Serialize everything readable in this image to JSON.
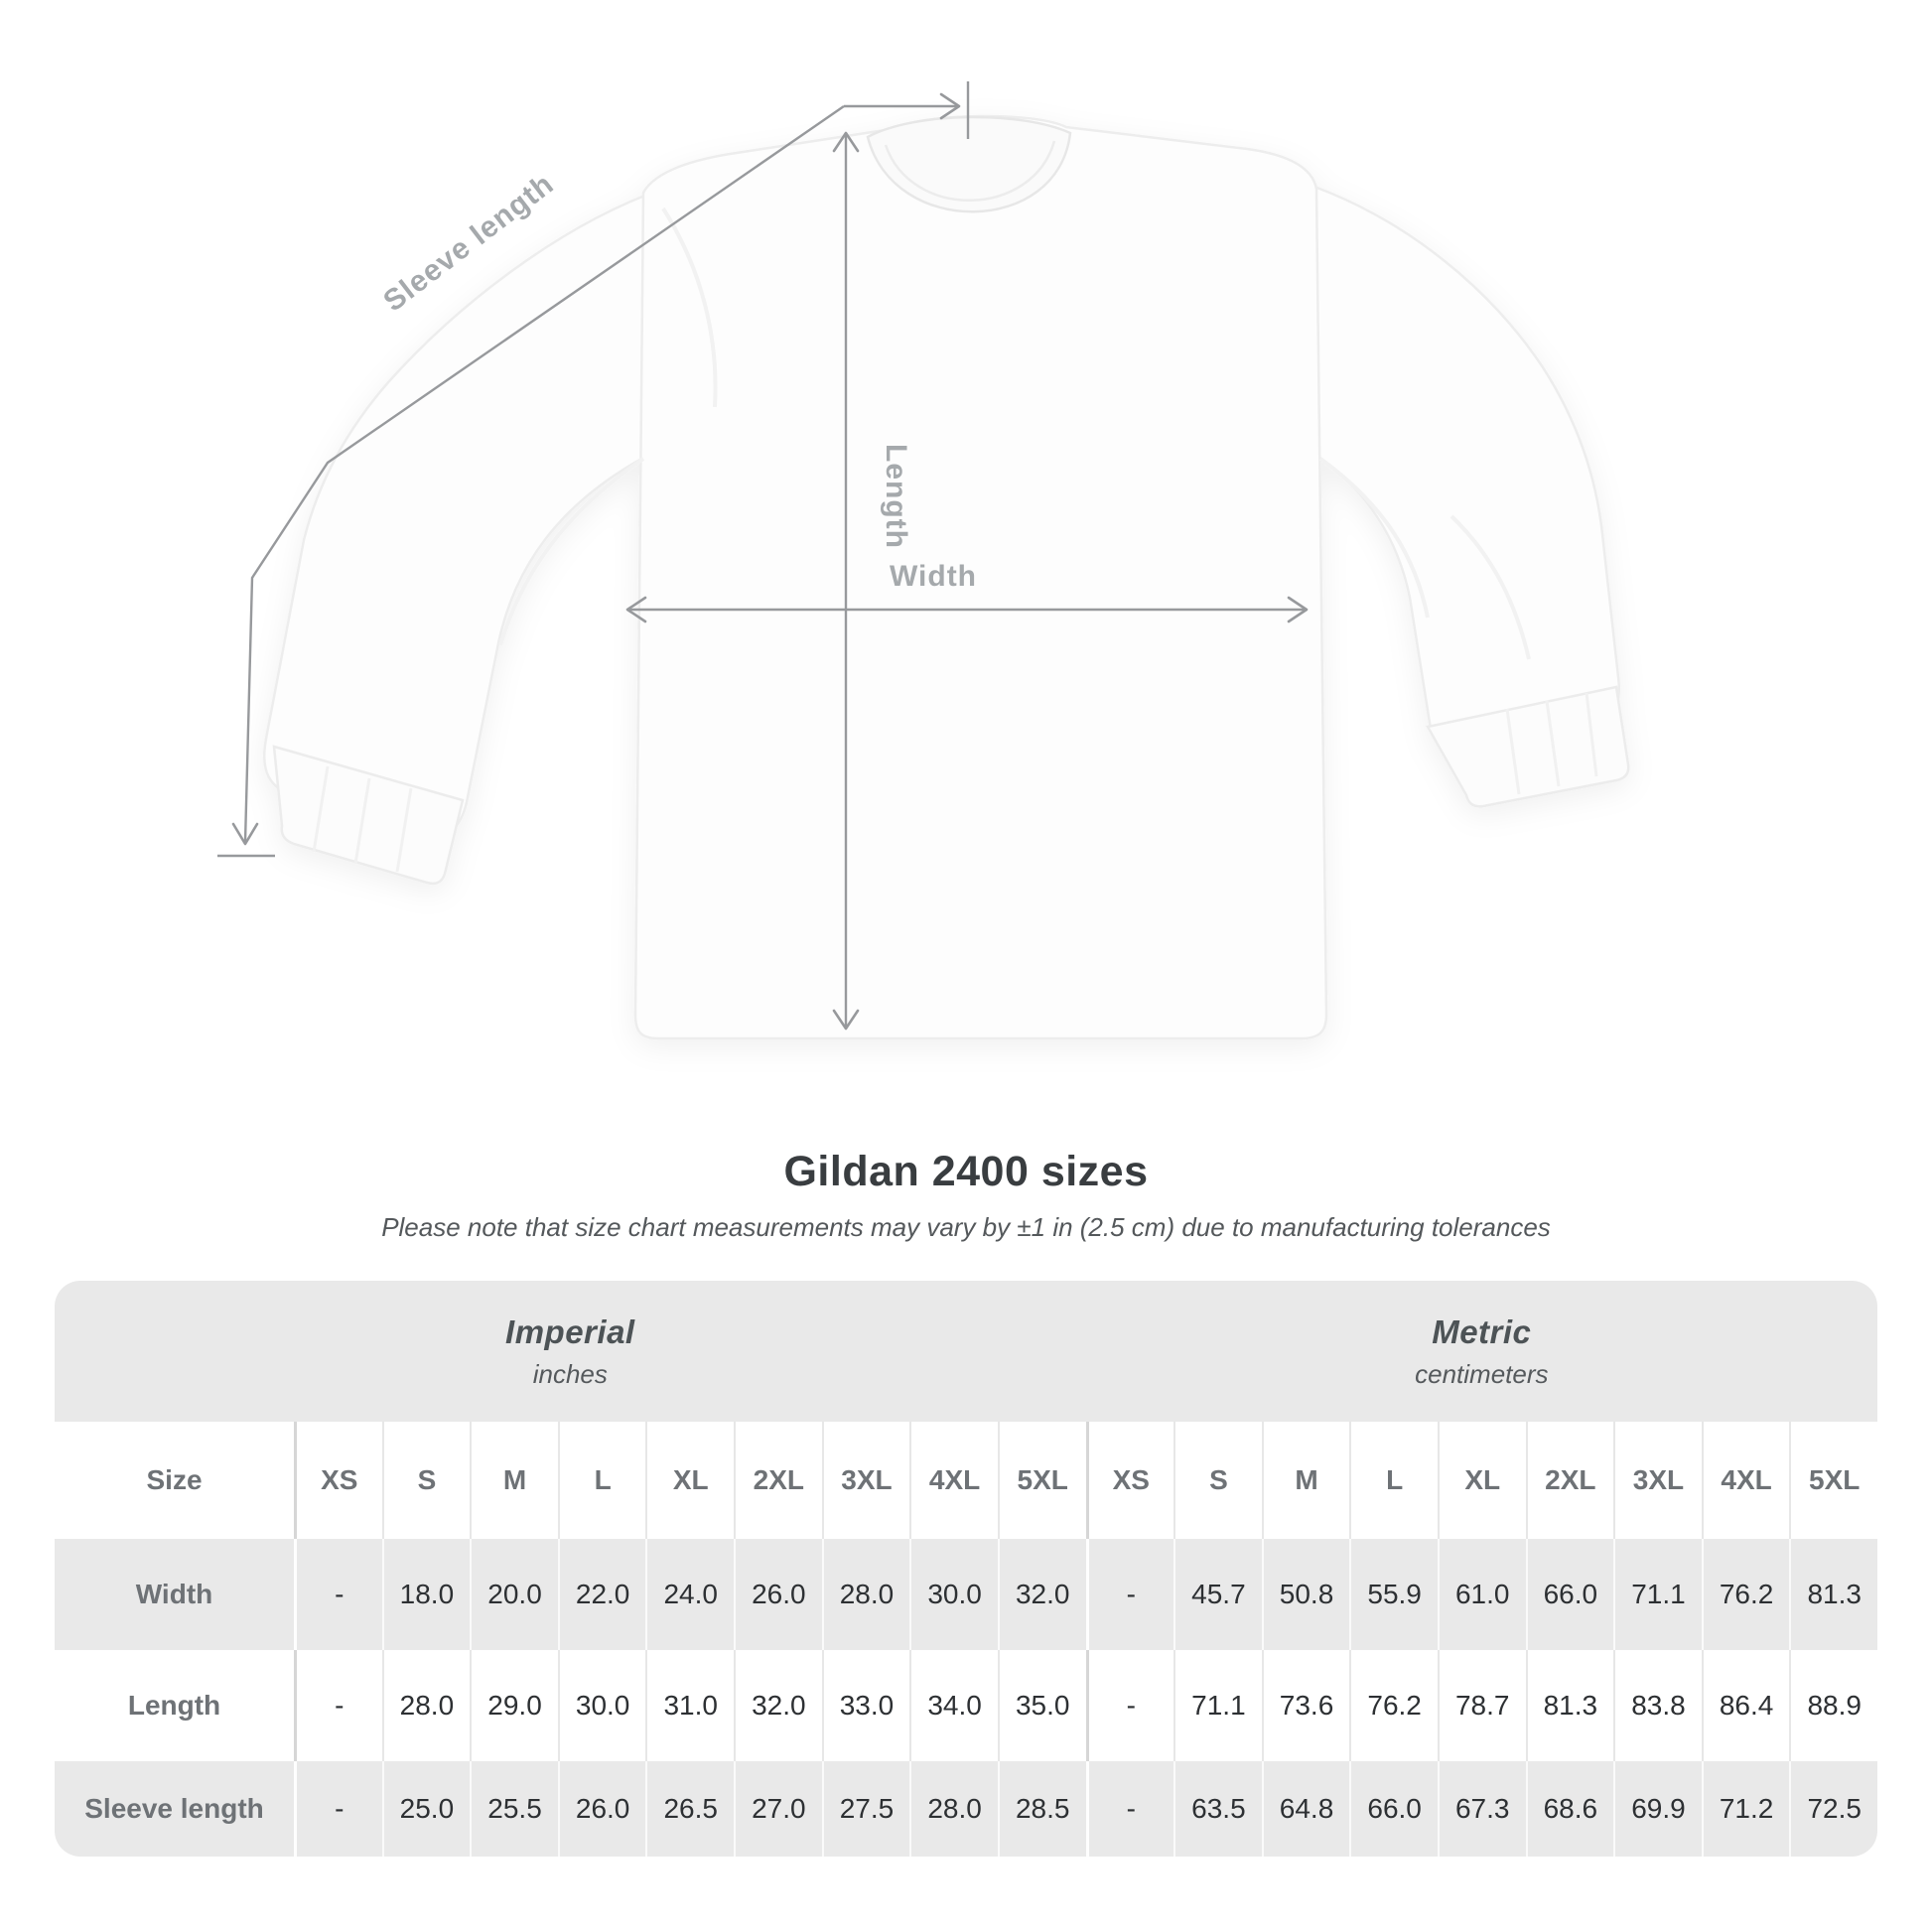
{
  "diagram": {
    "sleeve_length_label": "Sleeve length",
    "length_label": "Length",
    "width_label": "Width"
  },
  "heading": {
    "title": "Gildan 2400 sizes",
    "subtitle": "Please note that size chart measurements may vary by ±1 in (2.5 cm) due to manufacturing tolerances"
  },
  "chart_data": {
    "type": "table",
    "title": "Gildan 2400 sizes",
    "corner_label": "Size",
    "unit_groups": [
      {
        "title": "Imperial",
        "subtitle": "inches",
        "sizes": [
          "XS",
          "S",
          "M",
          "L",
          "XL",
          "2XL",
          "3XL",
          "4XL",
          "5XL"
        ]
      },
      {
        "title": "Metric",
        "subtitle": "centimeters",
        "sizes": [
          "XS",
          "S",
          "M",
          "L",
          "XL",
          "2XL",
          "3XL",
          "4XL",
          "5XL"
        ]
      }
    ],
    "rows": [
      {
        "label": "Width",
        "values": [
          "-",
          "18.0",
          "20.0",
          "22.0",
          "24.0",
          "26.0",
          "28.0",
          "30.0",
          "32.0",
          "-",
          "45.7",
          "50.8",
          "55.9",
          "61.0",
          "66.0",
          "71.1",
          "76.2",
          "81.3"
        ]
      },
      {
        "label": "Length",
        "values": [
          "-",
          "28.0",
          "29.0",
          "30.0",
          "31.0",
          "32.0",
          "33.0",
          "34.0",
          "35.0",
          "-",
          "71.1",
          "73.6",
          "76.2",
          "78.7",
          "81.3",
          "83.8",
          "86.4",
          "88.9"
        ]
      },
      {
        "label": "Sleeve length",
        "values": [
          "-",
          "25.0",
          "25.5",
          "26.0",
          "26.5",
          "27.0",
          "27.5",
          "28.0",
          "28.5",
          "-",
          "63.5",
          "64.8",
          "66.0",
          "67.3",
          "68.6",
          "69.9",
          "71.2",
          "72.5"
        ]
      }
    ],
    "colors": {
      "band_grey": "#e9e9e9",
      "value_text": "#2d3033",
      "header_text": "#6e7276",
      "unit_title": "#4d5356",
      "diagram_line": "#97999c",
      "diagram_label": "#a5a9ac"
    }
  }
}
